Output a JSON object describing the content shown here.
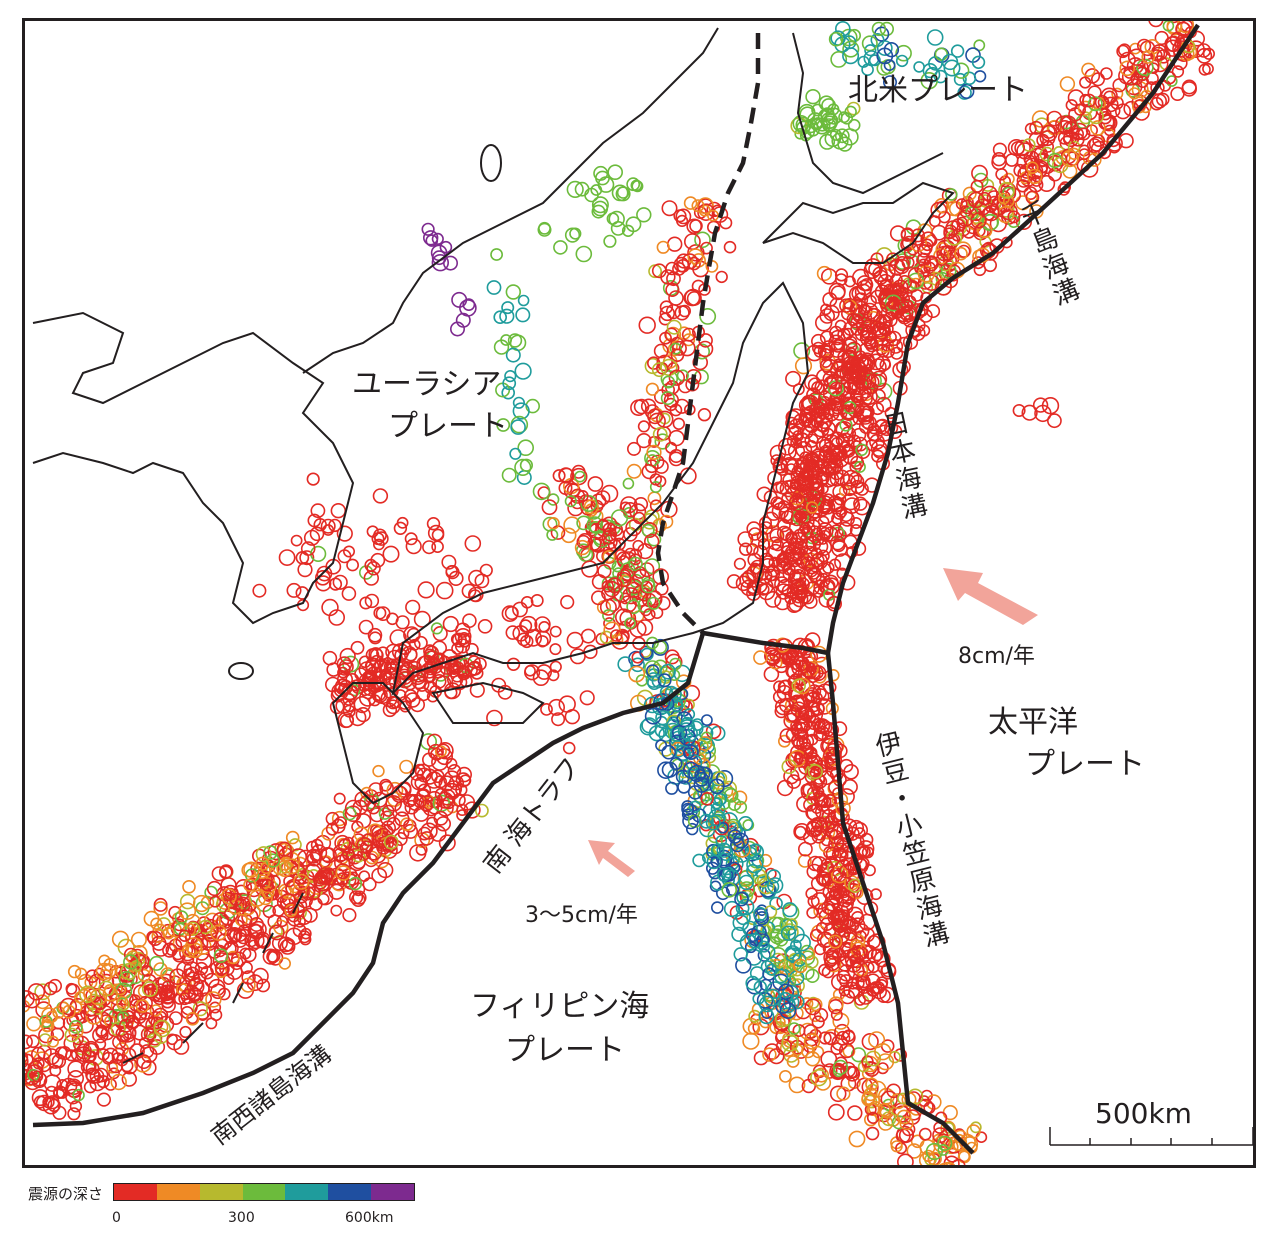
{
  "plates": {
    "north_american": "北米プレート",
    "eurasian_line1": "ユーラシア",
    "eurasian_line2": "プレート",
    "pacific_line1": "太平洋",
    "pacific_line2": "プレート",
    "philippine_line1": "フィリピン海",
    "philippine_line2": "プレート"
  },
  "trenches": {
    "kuril": "千島海溝",
    "japan": "日本海溝",
    "izu_bonin": "伊豆・小笠原海溝",
    "nankai": "南 海トラフ",
    "ryukyu": "南西諸島海溝"
  },
  "velocities": {
    "pacific": "8cm/年",
    "philippine": "3〜5cm/年"
  },
  "scale_bar": {
    "label": "500km"
  },
  "legend": {
    "title": "震源の深さ",
    "colors": [
      "#e32b25",
      "#ef8a25",
      "#b7b92e",
      "#6cbb3c",
      "#1f9c9c",
      "#1f4fa0",
      "#7d2a8f"
    ],
    "ticks": [
      "0",
      "300",
      "600km"
    ]
  },
  "colors": {
    "arrow": "#f2a49a",
    "coast": "#231f20"
  }
}
